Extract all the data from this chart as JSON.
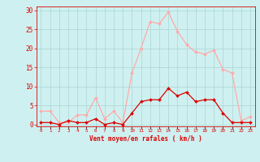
{
  "hours": [
    0,
    1,
    2,
    3,
    4,
    5,
    6,
    7,
    8,
    9,
    10,
    11,
    12,
    13,
    14,
    15,
    16,
    17,
    18,
    19,
    20,
    21,
    22,
    23
  ],
  "wind_avg": [
    0.5,
    0.5,
    0.0,
    1.0,
    0.5,
    0.5,
    1.5,
    0.0,
    0.5,
    0.0,
    3.0,
    6.0,
    6.5,
    6.5,
    9.5,
    7.5,
    8.5,
    6.0,
    6.5,
    6.5,
    3.0,
    0.5,
    0.5,
    0.5
  ],
  "wind_gust": [
    3.5,
    3.5,
    0.5,
    0.5,
    2.5,
    2.5,
    7.0,
    1.5,
    3.5,
    0.5,
    13.5,
    20.0,
    27.0,
    26.5,
    29.5,
    24.5,
    21.0,
    19.0,
    18.5,
    19.5,
    14.5,
    13.5,
    1.0,
    2.0
  ],
  "ylabel_values": [
    0,
    5,
    10,
    15,
    20,
    25,
    30
  ],
  "xlabel": "Vent moyen/en rafales ( km/h )",
  "bg_color": "#cff0f0",
  "grid_color": "#aad4d4",
  "line_color_avg": "#dd0000",
  "line_color_gust": "#ffaaaa",
  "marker_color_avg": "#dd0000",
  "marker_color_gust": "#ffaaaa",
  "ylim": [
    -0.5,
    31
  ],
  "xlim": [
    -0.5,
    23.5
  ]
}
